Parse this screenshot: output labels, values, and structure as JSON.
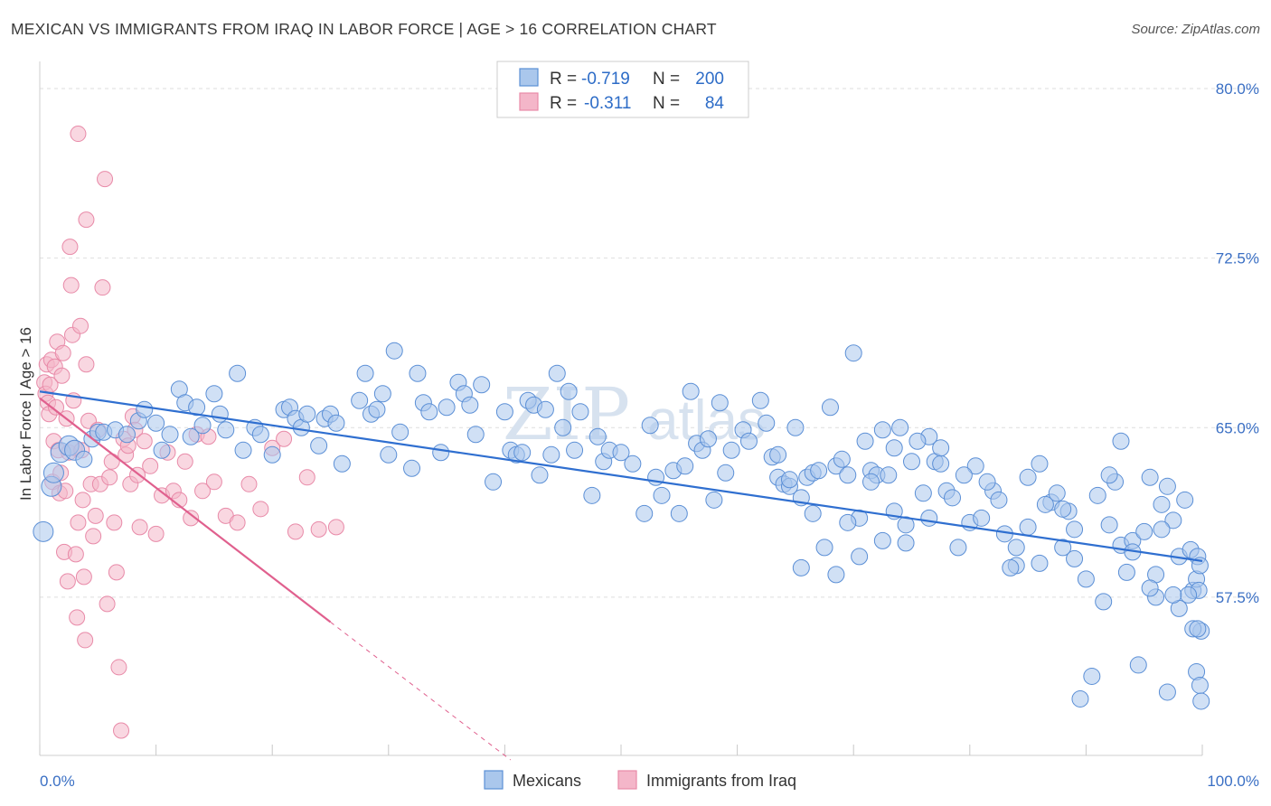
{
  "title": "MEXICAN VS IMMIGRANTS FROM IRAQ IN LABOR FORCE | AGE > 16 CORRELATION CHART",
  "source": "Source: ZipAtlas.com",
  "watermark": {
    "part1": "ZIP",
    "part2": "atlas"
  },
  "colors": {
    "blue_fill": "#aac7ec",
    "blue_stroke": "#5b8fd6",
    "blue_line": "#2f6fd0",
    "pink_fill": "#f4b6c9",
    "pink_stroke": "#e88aa8",
    "pink_line": "#e0608e",
    "axis_text": "#3a6fc4",
    "grid": "#dedede"
  },
  "legend": {
    "rows": [
      {
        "r_label": "R =",
        "r_value": "-0.719",
        "n_label": "N =",
        "n_value": "200"
      },
      {
        "r_label": "R =",
        "r_value": "-0.311",
        "n_label": "N =",
        "n_value": "84"
      }
    ]
  },
  "bottom_legend": {
    "series1": "Mexicans",
    "series2": "Immigrants from Iraq"
  },
  "chart_data": {
    "type": "scatter",
    "title": "MEXICAN VS IMMIGRANTS FROM IRAQ IN LABOR FORCE | AGE > 16 CORRELATION CHART",
    "xlabel": "",
    "ylabel": "In Labor Force | Age > 16",
    "xlim": [
      0,
      100
    ],
    "ylim": [
      50.5,
      81.2
    ],
    "x_tick_labels": [
      "0.0%",
      "100.0%"
    ],
    "y_ticks": [
      57.5,
      65.0,
      72.5,
      80.0
    ],
    "y_tick_labels": [
      "57.5%",
      "65.0%",
      "72.5%",
      "80.0%"
    ],
    "grid": true,
    "legend_position": "top-center",
    "series": [
      {
        "name": "Mexicans",
        "r": -0.719,
        "n": 200,
        "trend": {
          "x": [
            0,
            100
          ],
          "y": [
            66.6,
            59.1
          ]
        },
        "points": [
          [
            0.3,
            60.4
          ],
          [
            1.0,
            62.4
          ],
          [
            1.2,
            63.0
          ],
          [
            1.8,
            63.9
          ],
          [
            2.5,
            64.2
          ],
          [
            3.0,
            64.0
          ],
          [
            3.8,
            63.6
          ],
          [
            4.5,
            64.5
          ],
          [
            5.0,
            64.8
          ],
          [
            5.5,
            64.8
          ],
          [
            6.5,
            64.9
          ],
          [
            7.5,
            64.7
          ],
          [
            8.5,
            65.3
          ],
          [
            9.0,
            65.8
          ],
          [
            10.0,
            65.2
          ],
          [
            10.5,
            64.0
          ],
          [
            11.2,
            64.7
          ],
          [
            12.0,
            66.7
          ],
          [
            12.5,
            66.1
          ],
          [
            13.0,
            64.6
          ],
          [
            13.5,
            65.9
          ],
          [
            14.0,
            65.1
          ],
          [
            15.0,
            66.5
          ],
          [
            15.5,
            65.6
          ],
          [
            16.0,
            64.9
          ],
          [
            17.0,
            67.4
          ],
          [
            17.5,
            64.0
          ],
          [
            18.5,
            65.0
          ],
          [
            19.0,
            64.7
          ],
          [
            20.0,
            63.8
          ],
          [
            21.0,
            65.8
          ],
          [
            21.5,
            65.9
          ],
          [
            22.0,
            65.4
          ],
          [
            22.5,
            65.0
          ],
          [
            23.0,
            65.6
          ],
          [
            24.0,
            64.2
          ],
          [
            24.5,
            65.4
          ],
          [
            25.0,
            65.6
          ],
          [
            25.5,
            65.2
          ],
          [
            26.0,
            63.4
          ],
          [
            27.5,
            66.2
          ],
          [
            28.0,
            67.4
          ],
          [
            28.5,
            65.6
          ],
          [
            29.0,
            65.8
          ],
          [
            29.5,
            66.5
          ],
          [
            30.0,
            63.8
          ],
          [
            30.5,
            68.4
          ],
          [
            31.0,
            64.8
          ],
          [
            32.0,
            63.2
          ],
          [
            32.5,
            67.4
          ],
          [
            33.0,
            66.1
          ],
          [
            33.5,
            65.7
          ],
          [
            34.5,
            63.9
          ],
          [
            35.0,
            65.9
          ],
          [
            36.0,
            67.0
          ],
          [
            36.5,
            66.5
          ],
          [
            37.0,
            66.0
          ],
          [
            37.5,
            64.7
          ],
          [
            38.0,
            66.9
          ],
          [
            39.0,
            62.6
          ],
          [
            40.0,
            65.7
          ],
          [
            40.5,
            64.0
          ],
          [
            41.0,
            63.8
          ],
          [
            41.5,
            63.9
          ],
          [
            42.0,
            66.2
          ],
          [
            42.5,
            66.0
          ],
          [
            43.0,
            62.9
          ],
          [
            43.5,
            65.8
          ],
          [
            44.0,
            63.8
          ],
          [
            44.5,
            67.4
          ],
          [
            45.0,
            65.0
          ],
          [
            45.5,
            66.6
          ],
          [
            46.0,
            64.0
          ],
          [
            46.5,
            65.7
          ],
          [
            47.5,
            62.0
          ],
          [
            48.0,
            64.6
          ],
          [
            48.5,
            63.5
          ],
          [
            49.0,
            64.0
          ],
          [
            50.0,
            63.9
          ],
          [
            51.0,
            63.4
          ],
          [
            52.0,
            61.2
          ],
          [
            52.5,
            65.1
          ],
          [
            53.0,
            62.8
          ],
          [
            53.5,
            62.0
          ],
          [
            54.5,
            63.1
          ],
          [
            55.0,
            61.2
          ],
          [
            55.5,
            63.3
          ],
          [
            56.0,
            66.6
          ],
          [
            56.5,
            64.3
          ],
          [
            57.0,
            64.0
          ],
          [
            57.5,
            64.5
          ],
          [
            58.0,
            61.8
          ],
          [
            58.5,
            66.1
          ],
          [
            59.0,
            63.0
          ],
          [
            59.5,
            64.0
          ],
          [
            60.5,
            64.9
          ],
          [
            61.0,
            64.4
          ],
          [
            62.0,
            66.2
          ],
          [
            63.0,
            63.7
          ],
          [
            63.5,
            62.8
          ],
          [
            64.0,
            62.5
          ],
          [
            64.5,
            62.4
          ],
          [
            65.0,
            65.0
          ],
          [
            65.5,
            58.8
          ],
          [
            66.0,
            62.8
          ],
          [
            66.5,
            63.0
          ],
          [
            67.0,
            63.1
          ],
          [
            68.0,
            65.9
          ],
          [
            68.5,
            63.3
          ],
          [
            69.0,
            63.6
          ],
          [
            69.5,
            62.9
          ],
          [
            70.0,
            68.3
          ],
          [
            70.5,
            61.0
          ],
          [
            71.0,
            64.4
          ],
          [
            71.5,
            63.1
          ],
          [
            72.0,
            62.9
          ],
          [
            72.5,
            64.9
          ],
          [
            73.0,
            62.9
          ],
          [
            73.5,
            64.1
          ],
          [
            74.0,
            65.0
          ],
          [
            74.5,
            60.7
          ],
          [
            75.0,
            63.5
          ],
          [
            76.0,
            62.1
          ],
          [
            76.5,
            61.0
          ],
          [
            77.0,
            63.5
          ],
          [
            77.5,
            63.4
          ],
          [
            78.0,
            62.2
          ],
          [
            79.0,
            59.7
          ],
          [
            80.0,
            60.8
          ],
          [
            81.0,
            61.0
          ],
          [
            82.0,
            62.2
          ],
          [
            83.0,
            60.3
          ],
          [
            84.0,
            58.9
          ],
          [
            85.0,
            60.6
          ],
          [
            86.0,
            59.0
          ],
          [
            87.0,
            61.7
          ],
          [
            88.0,
            59.7
          ],
          [
            88.5,
            61.3
          ],
          [
            89.0,
            59.2
          ],
          [
            90.0,
            58.3
          ],
          [
            91.0,
            62.0
          ],
          [
            92.0,
            60.7
          ],
          [
            92.5,
            62.6
          ],
          [
            93.0,
            59.8
          ],
          [
            93.5,
            58.6
          ],
          [
            94.0,
            60.0
          ],
          [
            95.0,
            60.4
          ],
          [
            95.5,
            62.8
          ],
          [
            96.0,
            58.5
          ],
          [
            96.5,
            61.6
          ],
          [
            97.0,
            62.4
          ],
          [
            97.5,
            60.9
          ],
          [
            98.0,
            59.3
          ],
          [
            98.5,
            61.8
          ],
          [
            99.0,
            59.6
          ],
          [
            99.2,
            57.8
          ],
          [
            99.5,
            58.3
          ],
          [
            99.6,
            59.3
          ],
          [
            99.7,
            57.8
          ],
          [
            99.8,
            58.9
          ],
          [
            99.9,
            56.0
          ],
          [
            99.5,
            54.2
          ],
          [
            99.8,
            53.6
          ],
          [
            99.9,
            52.9
          ],
          [
            99.2,
            56.1
          ],
          [
            99.6,
            56.1
          ],
          [
            98.8,
            57.6
          ],
          [
            98.0,
            57.0
          ],
          [
            97.5,
            57.6
          ],
          [
            97.0,
            53.3
          ],
          [
            96.5,
            60.5
          ],
          [
            96.0,
            57.5
          ],
          [
            95.5,
            57.9
          ],
          [
            94.5,
            54.5
          ],
          [
            94.0,
            59.5
          ],
          [
            93.0,
            64.4
          ],
          [
            92.0,
            62.9
          ],
          [
            91.5,
            57.3
          ],
          [
            90.5,
            54.0
          ],
          [
            89.5,
            53.0
          ],
          [
            89.0,
            60.5
          ],
          [
            88.0,
            61.4
          ],
          [
            87.5,
            62.1
          ],
          [
            86.5,
            61.6
          ],
          [
            86.0,
            63.4
          ],
          [
            85.0,
            62.8
          ],
          [
            84.0,
            59.7
          ],
          [
            83.5,
            58.8
          ],
          [
            82.5,
            61.8
          ],
          [
            81.5,
            62.6
          ],
          [
            80.5,
            63.3
          ],
          [
            79.5,
            62.9
          ],
          [
            78.5,
            61.9
          ],
          [
            77.5,
            64.1
          ],
          [
            76.5,
            64.6
          ],
          [
            75.5,
            64.4
          ],
          [
            74.5,
            59.9
          ],
          [
            73.5,
            61.3
          ],
          [
            72.5,
            60.0
          ],
          [
            71.5,
            62.6
          ],
          [
            70.5,
            59.3
          ],
          [
            69.5,
            60.8
          ],
          [
            68.5,
            58.5
          ],
          [
            67.5,
            59.7
          ],
          [
            66.5,
            61.2
          ],
          [
            65.5,
            61.9
          ],
          [
            64.5,
            62.7
          ],
          [
            63.5,
            63.8
          ],
          [
            62.5,
            65.2
          ]
        ]
      },
      {
        "name": "Immigrants from Iraq",
        "r": -0.311,
        "n": 84,
        "trend": {
          "x": [
            0,
            25
          ],
          "y": [
            66.3,
            56.4
          ]
        },
        "trend_dashed": {
          "x": [
            25,
            40.5
          ],
          "y": [
            56.4,
            50.3
          ]
        },
        "points": [
          [
            0.4,
            67.0
          ],
          [
            0.5,
            66.5
          ],
          [
            0.6,
            67.8
          ],
          [
            0.7,
            66.1
          ],
          [
            0.8,
            65.6
          ],
          [
            0.9,
            66.9
          ],
          [
            1.0,
            68.0
          ],
          [
            1.1,
            62.6
          ],
          [
            1.2,
            64.4
          ],
          [
            1.3,
            67.7
          ],
          [
            1.4,
            65.9
          ],
          [
            1.5,
            68.8
          ],
          [
            1.6,
            64.0
          ],
          [
            1.7,
            62.1
          ],
          [
            1.8,
            63.0
          ],
          [
            1.9,
            67.3
          ],
          [
            2.0,
            68.3
          ],
          [
            2.1,
            59.5
          ],
          [
            2.2,
            62.2
          ],
          [
            2.3,
            65.4
          ],
          [
            2.4,
            58.2
          ],
          [
            2.5,
            63.9
          ],
          [
            2.6,
            73.0
          ],
          [
            2.7,
            71.3
          ],
          [
            2.8,
            69.1
          ],
          [
            2.9,
            66.2
          ],
          [
            3.0,
            64.1
          ],
          [
            3.1,
            59.4
          ],
          [
            3.2,
            56.6
          ],
          [
            3.3,
            60.8
          ],
          [
            3.5,
            69.5
          ],
          [
            3.6,
            64.0
          ],
          [
            3.7,
            61.8
          ],
          [
            3.8,
            58.4
          ],
          [
            3.9,
            55.6
          ],
          [
            4.0,
            67.8
          ],
          [
            4.2,
            65.3
          ],
          [
            4.4,
            62.5
          ],
          [
            4.6,
            60.2
          ],
          [
            4.8,
            61.1
          ],
          [
            5.0,
            64.9
          ],
          [
            5.2,
            62.5
          ],
          [
            5.4,
            71.2
          ],
          [
            5.6,
            76.0
          ],
          [
            5.8,
            57.2
          ],
          [
            6.0,
            62.8
          ],
          [
            6.2,
            63.5
          ],
          [
            6.4,
            60.8
          ],
          [
            6.6,
            58.6
          ],
          [
            6.8,
            54.4
          ],
          [
            7.0,
            51.6
          ],
          [
            7.2,
            64.5
          ],
          [
            7.4,
            63.8
          ],
          [
            7.6,
            64.2
          ],
          [
            7.8,
            62.5
          ],
          [
            8.0,
            65.5
          ],
          [
            8.2,
            64.9
          ],
          [
            8.4,
            62.9
          ],
          [
            8.6,
            60.6
          ],
          [
            9.0,
            64.4
          ],
          [
            9.5,
            63.3
          ],
          [
            10.0,
            60.3
          ],
          [
            10.5,
            62.0
          ],
          [
            11.0,
            63.9
          ],
          [
            11.5,
            62.2
          ],
          [
            12.0,
            61.8
          ],
          [
            12.5,
            63.5
          ],
          [
            13.0,
            61.0
          ],
          [
            13.5,
            64.7
          ],
          [
            14.0,
            62.2
          ],
          [
            14.5,
            64.6
          ],
          [
            15.0,
            62.6
          ],
          [
            16.0,
            61.1
          ],
          [
            17.0,
            60.8
          ],
          [
            18.0,
            62.5
          ],
          [
            19.0,
            61.4
          ],
          [
            20.0,
            64.1
          ],
          [
            21.0,
            64.5
          ],
          [
            22.0,
            60.4
          ],
          [
            23.0,
            62.8
          ],
          [
            24.0,
            60.5
          ],
          [
            25.5,
            60.6
          ],
          [
            3.3,
            78.0
          ],
          [
            4.0,
            74.2
          ]
        ]
      }
    ]
  }
}
